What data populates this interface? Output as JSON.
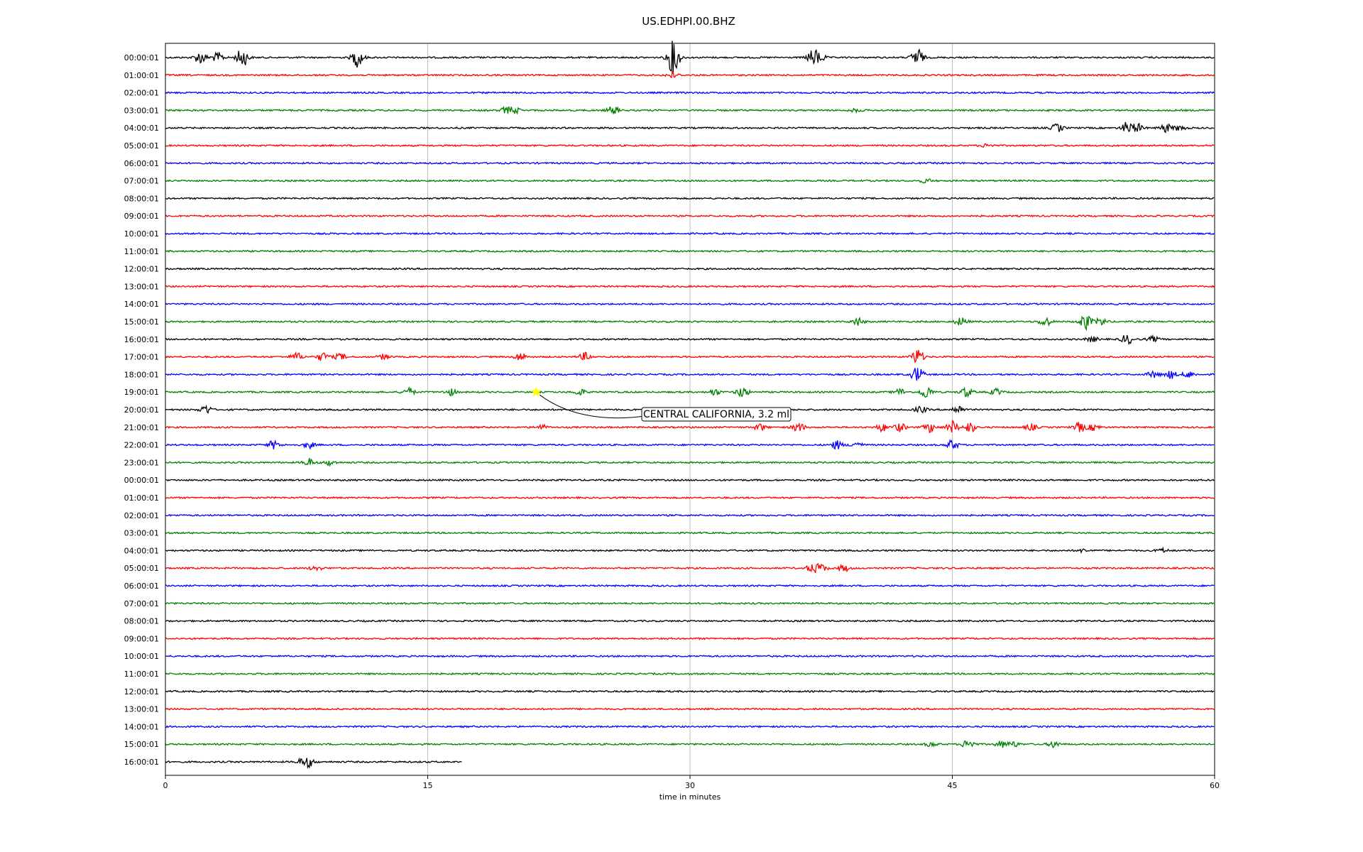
{
  "chart_data": {
    "type": "line",
    "title": "US.EDHPI.00.BHZ",
    "xlabel": "time in minutes",
    "ylabel": "",
    "xlim": [
      0,
      60
    ],
    "xticks": [
      0,
      15,
      30,
      45,
      60
    ],
    "grid": "vertical",
    "trace_colors": [
      "#000000",
      "#ff0000",
      "#0000ff",
      "#008000"
    ],
    "rows": [
      {
        "label": "00:00:01",
        "end": 60,
        "bursts": [
          [
            2,
            2
          ],
          [
            3,
            1.5
          ],
          [
            4.4,
            3
          ],
          [
            11,
            3
          ],
          [
            29,
            2.5
          ],
          [
            29.1,
            3
          ],
          [
            37,
            2
          ],
          [
            37.4,
            1.5
          ],
          [
            43,
            3
          ]
        ]
      },
      {
        "label": "01:00:01",
        "end": 60,
        "bursts": [
          [
            29,
            1
          ]
        ]
      },
      {
        "label": "02:00:01",
        "end": 60,
        "bursts": []
      },
      {
        "label": "03:00:01",
        "end": 60,
        "bursts": [
          [
            19.5,
            1
          ],
          [
            20,
            0.8
          ],
          [
            25.6,
            1.3
          ],
          [
            39.5,
            0.5
          ]
        ]
      },
      {
        "label": "04:00:01",
        "end": 60,
        "bursts": [
          [
            51,
            1.3
          ],
          [
            55,
            1.8
          ],
          [
            55.6,
            1.2
          ],
          [
            57.2,
            1.3
          ],
          [
            58,
            0.8
          ]
        ]
      },
      {
        "label": "05:00:01",
        "end": 60,
        "bursts": [
          [
            47,
            0.6
          ]
        ]
      },
      {
        "label": "06:00:01",
        "end": 60,
        "bursts": []
      },
      {
        "label": "07:00:01",
        "end": 60,
        "bursts": [
          [
            43.5,
            0.6
          ]
        ]
      },
      {
        "label": "08:00:01",
        "end": 60,
        "bursts": []
      },
      {
        "label": "09:00:01",
        "end": 60,
        "bursts": []
      },
      {
        "label": "10:00:01",
        "end": 60,
        "bursts": []
      },
      {
        "label": "11:00:01",
        "end": 60,
        "bursts": []
      },
      {
        "label": "12:00:01",
        "end": 60,
        "bursts": []
      },
      {
        "label": "13:00:01",
        "end": 60,
        "bursts": []
      },
      {
        "label": "14:00:01",
        "end": 60,
        "bursts": []
      },
      {
        "label": "15:00:01",
        "end": 60,
        "bursts": [
          [
            39.6,
            1.2
          ],
          [
            45.5,
            1.3
          ],
          [
            50.3,
            1.5
          ],
          [
            52.6,
            2.5
          ],
          [
            53.5,
            1.2
          ]
        ]
      },
      {
        "label": "16:00:01",
        "end": 60,
        "bursts": [
          [
            53,
            0.8
          ],
          [
            55,
            1.5
          ],
          [
            56.5,
            0.8
          ]
        ]
      },
      {
        "label": "17:00:01",
        "end": 60,
        "bursts": [
          [
            7.5,
            1.2
          ],
          [
            9,
            1.3
          ],
          [
            10,
            1
          ],
          [
            12.5,
            0.8
          ],
          [
            20.3,
            1.3
          ],
          [
            24,
            1.2
          ],
          [
            43,
            2.5
          ]
        ]
      },
      {
        "label": "18:00:01",
        "end": 60,
        "bursts": [
          [
            43,
            2.5
          ],
          [
            56.5,
            1
          ],
          [
            57.5,
            1.2
          ],
          [
            58.5,
            1
          ]
        ]
      },
      {
        "label": "19:00:01",
        "end": 60,
        "bursts": [
          [
            13.9,
            1.3
          ],
          [
            16.3,
            1
          ],
          [
            23.7,
            1
          ],
          [
            31.4,
            1
          ],
          [
            33,
            1.7
          ],
          [
            42,
            1
          ],
          [
            43.5,
            2
          ],
          [
            45.8,
            1.5
          ],
          [
            47.5,
            1
          ]
        ]
      },
      {
        "label": "20:00:01",
        "end": 60,
        "bursts": [
          [
            2.3,
            1.4
          ],
          [
            43.2,
            1
          ],
          [
            45.3,
            1.3
          ]
        ]
      },
      {
        "label": "21:00:01",
        "end": 60,
        "bursts": [
          [
            21.5,
            0.8
          ],
          [
            34,
            1
          ],
          [
            36.2,
            1.5
          ],
          [
            41,
            1.2
          ],
          [
            42,
            1.3
          ],
          [
            43.7,
            1.5
          ],
          [
            45,
            2
          ],
          [
            46,
            1.6
          ],
          [
            49.5,
            1
          ],
          [
            52.3,
            1.5
          ],
          [
            53.1,
            1
          ]
        ]
      },
      {
        "label": "22:00:01",
        "end": 60,
        "bursts": [
          [
            6.2,
            1.3
          ],
          [
            8.2,
            1
          ],
          [
            38.4,
            1.3
          ],
          [
            39.5,
            1
          ],
          [
            45,
            1.5
          ]
        ]
      },
      {
        "label": "23:00:01",
        "end": 60,
        "bursts": [
          [
            8.2,
            1.2
          ],
          [
            9.4,
            0.8
          ]
        ]
      },
      {
        "label": "00:00:01",
        "end": 60,
        "bursts": []
      },
      {
        "label": "01:00:01",
        "end": 60,
        "bursts": []
      },
      {
        "label": "02:00:01",
        "end": 60,
        "bursts": []
      },
      {
        "label": "03:00:01",
        "end": 60,
        "bursts": []
      },
      {
        "label": "04:00:01",
        "end": 60,
        "bursts": [
          [
            52.5,
            0.5
          ],
          [
            57,
            0.6
          ]
        ]
      },
      {
        "label": "05:00:01",
        "end": 60,
        "bursts": [
          [
            8.6,
            0.8
          ],
          [
            37,
            1.3
          ],
          [
            37.5,
            1.2
          ],
          [
            38.8,
            1
          ]
        ]
      },
      {
        "label": "06:00:01",
        "end": 60,
        "bursts": []
      },
      {
        "label": "07:00:01",
        "end": 60,
        "bursts": []
      },
      {
        "label": "08:00:01",
        "end": 60,
        "bursts": []
      },
      {
        "label": "09:00:01",
        "end": 60,
        "bursts": []
      },
      {
        "label": "10:00:01",
        "end": 60,
        "bursts": []
      },
      {
        "label": "11:00:01",
        "end": 60,
        "bursts": []
      },
      {
        "label": "12:00:01",
        "end": 60,
        "bursts": []
      },
      {
        "label": "13:00:01",
        "end": 60,
        "bursts": []
      },
      {
        "label": "14:00:01",
        "end": 60,
        "bursts": []
      },
      {
        "label": "15:00:01",
        "end": 60,
        "bursts": [
          [
            43.8,
            0.7
          ],
          [
            45.9,
            1.6
          ],
          [
            47.8,
            1
          ],
          [
            48.5,
            0.8
          ],
          [
            50.8,
            1
          ]
        ]
      },
      {
        "label": "16:00:01",
        "end": 17,
        "bursts": [
          [
            7.8,
            0.8
          ],
          [
            8.2,
            1.4
          ]
        ]
      }
    ],
    "event": {
      "label": "CENTRAL CALIFORNIA, 3.2 ml",
      "row_index": 19,
      "time_min": 21.2,
      "marker_color": "#ffff00"
    }
  }
}
